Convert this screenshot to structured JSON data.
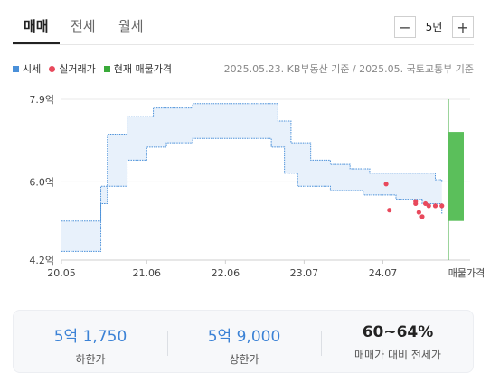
{
  "tabs": [
    {
      "label": "매매",
      "active": true
    },
    {
      "label": "전세",
      "active": false
    },
    {
      "label": "월세",
      "active": false
    }
  ],
  "period": {
    "minus": "−",
    "label": "5년",
    "plus": "+"
  },
  "legend": [
    {
      "label": "시세",
      "color": "#4a90d9",
      "shape": "square"
    },
    {
      "label": "실거래가",
      "color": "#e8495c",
      "shape": "dot"
    },
    {
      "label": "현재 매물가격",
      "color": "#3aaa3a",
      "shape": "square"
    }
  ],
  "source": "2025.05.23. KB부동산 기준 / 2025.05. 국토교통부 기준",
  "chart_data": {
    "type": "area",
    "y_ticks": [
      {
        "value": 7.9,
        "label": "7.9억"
      },
      {
        "value": 6.0,
        "label": "6.0억"
      },
      {
        "value": 4.2,
        "label": "4.2억"
      }
    ],
    "ylim": [
      4.2,
      7.9
    ],
    "x_ticks": [
      {
        "t": 0,
        "label": "20.05"
      },
      {
        "t": 13,
        "label": "21.06"
      },
      {
        "t": 25,
        "label": "22.06"
      },
      {
        "t": 37,
        "label": "23.07"
      },
      {
        "t": 49,
        "label": "24.07"
      }
    ],
    "current_label": "매물가격",
    "band": {
      "upper": [
        [
          0,
          5.1
        ],
        [
          5,
          5.1
        ],
        [
          6,
          5.9
        ],
        [
          7,
          7.1
        ],
        [
          9,
          7.1
        ],
        [
          10,
          7.5
        ],
        [
          14,
          7.7
        ],
        [
          19,
          7.7
        ],
        [
          20,
          7.8
        ],
        [
          31,
          7.8
        ],
        [
          33,
          7.4
        ],
        [
          35,
          6.9
        ],
        [
          38,
          6.5
        ],
        [
          41,
          6.4
        ],
        [
          44,
          6.3
        ],
        [
          47,
          6.2
        ],
        [
          53,
          6.2
        ],
        [
          57,
          6.05
        ],
        [
          58,
          6.0
        ]
      ],
      "lower": [
        [
          0,
          4.4
        ],
        [
          5,
          4.4
        ],
        [
          6,
          5.5
        ],
        [
          7,
          5.9
        ],
        [
          9,
          5.9
        ],
        [
          10,
          6.5
        ],
        [
          13,
          6.8
        ],
        [
          16,
          6.9
        ],
        [
          20,
          7.0
        ],
        [
          25,
          7.0
        ],
        [
          32,
          6.8
        ],
        [
          34,
          6.2
        ],
        [
          36,
          5.9
        ],
        [
          41,
          5.8
        ],
        [
          46,
          5.7
        ],
        [
          51,
          5.6
        ],
        [
          55,
          5.5
        ],
        [
          58,
          5.25
        ]
      ]
    },
    "transactions": [
      [
        49.5,
        5.95
      ],
      [
        50,
        5.35
      ],
      [
        54,
        5.55
      ],
      [
        54,
        5.5
      ],
      [
        54.5,
        5.3
      ],
      [
        55,
        5.2
      ],
      [
        55.5,
        5.5
      ],
      [
        56,
        5.45
      ],
      [
        57,
        5.45
      ],
      [
        58,
        5.45
      ]
    ],
    "listing": {
      "t": 59,
      "low": 5.1,
      "high": 7.15
    },
    "summary": [
      {
        "value": "5억 1,750",
        "label": "하한가"
      },
      {
        "value": "5억 9,000",
        "label": "상한가"
      },
      {
        "value": "60~64%",
        "label": "매매가 대비 전세가"
      }
    ]
  },
  "colors": {
    "band_line": "#4a90d9",
    "band_fill": "#e8f1fb",
    "transaction": "#e8495c",
    "listing_fill": "#5bbf5b",
    "listing_line": "#3aaa3a"
  }
}
